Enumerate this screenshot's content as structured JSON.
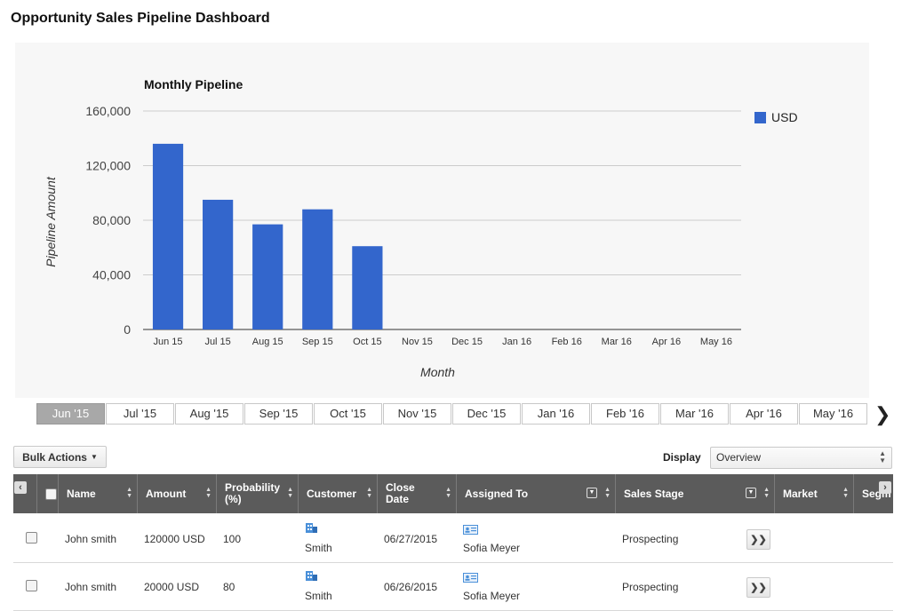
{
  "page": {
    "title": "Opportunity Sales Pipeline Dashboard"
  },
  "colors": {
    "bar": "#3366cc",
    "header_bg": "#5b5b5b",
    "active_tab": "#a8a8a8"
  },
  "chart_data": {
    "type": "bar",
    "title": "Monthly Pipeline",
    "xlabel": "Month",
    "ylabel": "Pipeline Amount",
    "categories": [
      "Jun 15",
      "Jul 15",
      "Aug 15",
      "Sep 15",
      "Oct 15",
      "Nov 15",
      "Dec 15",
      "Jan 16",
      "Feb 16",
      "Mar 16",
      "Apr 16",
      "May 16"
    ],
    "series": [
      {
        "name": "USD",
        "values": [
          136000,
          95000,
          77000,
          88000,
          61000,
          0,
          0,
          0,
          0,
          0,
          0,
          0
        ]
      }
    ],
    "ylim": [
      0,
      160000
    ],
    "yticks": [
      0,
      40000,
      80000,
      120000,
      160000
    ],
    "ytick_labels": [
      "0",
      "40,000",
      "80,000",
      "120,000",
      "160,000"
    ],
    "grid": true,
    "legend_position": "top-right"
  },
  "month_tabs": [
    "Jun '15",
    "Jul '15",
    "Aug '15",
    "Sep '15",
    "Oct '15",
    "Nov '15",
    "Dec '15",
    "Jan '16",
    "Feb '16",
    "Mar '16",
    "Apr '16",
    "May '16"
  ],
  "active_month_tab": "Jun '15",
  "toolbar": {
    "bulk_actions": "Bulk Actions",
    "display_label": "Display",
    "display_value": "Overview"
  },
  "columns": [
    {
      "label": "Name"
    },
    {
      "label": "Amount"
    },
    {
      "label": "Probability (%)"
    },
    {
      "label": "Customer"
    },
    {
      "label": "Close Date"
    },
    {
      "label": "Assigned To"
    },
    {
      "label": "Sales Stage"
    },
    {
      "label": "Market"
    },
    {
      "label": "Segm"
    }
  ],
  "rows": [
    {
      "name": "John smith",
      "amount": "120000 USD",
      "probability": "100",
      "customer": "Smith",
      "close_date": "06/27/2015",
      "assigned_to": "Sofia Meyer",
      "sales_stage": "Prospecting"
    },
    {
      "name": "John smith",
      "amount": "20000 USD",
      "probability": "80",
      "customer": "Smith",
      "close_date": "06/26/2015",
      "assigned_to": "Sofia Meyer",
      "sales_stage": "Prospecting"
    }
  ]
}
